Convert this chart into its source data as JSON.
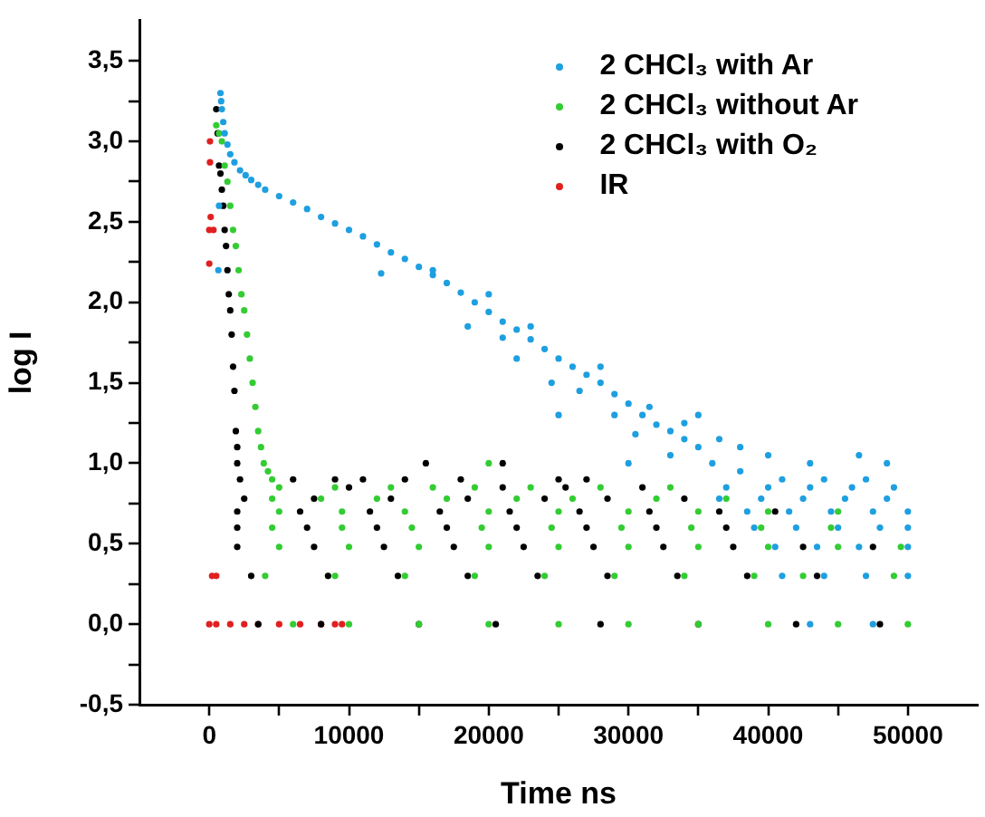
{
  "chart_data": {
    "type": "scatter",
    "xlabel": "Time ns",
    "ylabel": "log I",
    "legend": "top right",
    "grid": false,
    "marker": "circle",
    "xlim": [
      -5000,
      55000
    ],
    "xticks": [
      0,
      {
        "value": 5000,
        "label": null
      },
      10000,
      {
        "value": 15000,
        "label": null
      },
      20000,
      {
        "value": 25000,
        "label": null
      },
      30000,
      {
        "value": 35000,
        "label": null
      },
      40000,
      {
        "value": 45000,
        "label": null
      },
      50000
    ],
    "ylim": [
      -0.5,
      3.75
    ],
    "yticks": [
      {
        "value": -0.5,
        "label": "-0,5"
      },
      {
        "value": -0.25,
        "label": null
      },
      {
        "value": 0,
        "label": "0,0"
      },
      {
        "value": 0.25,
        "label": null
      },
      {
        "value": 0.5,
        "label": "0,5"
      },
      {
        "value": 0.75,
        "label": null
      },
      {
        "value": 1,
        "label": "1,0"
      },
      {
        "value": 1.25,
        "label": null
      },
      {
        "value": 1.5,
        "label": "1,5"
      },
      {
        "value": 1.75,
        "label": null
      },
      {
        "value": 2,
        "label": "2,0"
      },
      {
        "value": 2.25,
        "label": null
      },
      {
        "value": 2.5,
        "label": "2,5"
      },
      {
        "value": 2.75,
        "label": null
      },
      {
        "value": 3,
        "label": "3,0"
      },
      {
        "value": 3.25,
        "label": null
      },
      {
        "value": 3.5,
        "label": "3,5"
      }
    ],
    "series": [
      {
        "name": "2 CHCl₃ with Ar",
        "color": "#1e9fe0",
        "x": [
          800,
          850,
          900,
          1000,
          1100,
          1300,
          1500,
          1800,
          2200,
          2600,
          3000,
          3500,
          4000,
          5000,
          6000,
          7000,
          8000,
          9000,
          10000,
          11000,
          12000,
          13000,
          14000,
          15000,
          16000,
          17000,
          18000,
          19000,
          20000,
          21000,
          22000,
          23000,
          24000,
          25000,
          26000,
          27000,
          28000,
          29000,
          30000,
          31000,
          32000,
          33000,
          34000,
          35000,
          12300,
          16000,
          18500,
          20000,
          21000,
          22000,
          23000,
          24500,
          25000,
          26500,
          28000,
          29000,
          30000,
          30500,
          31500,
          33000,
          34000,
          35000,
          36500,
          38000,
          40000,
          43000,
          46500,
          48500,
          700,
          650,
          36000,
          38000,
          41000,
          44000,
          47000,
          37000,
          40000,
          43000,
          46000,
          49000,
          36500,
          39500,
          42500,
          45500,
          48500,
          38500,
          41500,
          44500,
          47500,
          50000,
          39000,
          42000,
          45000,
          48000,
          50000,
          40500,
          43500,
          46500,
          50000,
          41000,
          44000,
          47000,
          50000,
          43000,
          47500
        ],
        "values": [
          3.3,
          3.25,
          3.2,
          3.12,
          3.05,
          2.98,
          2.92,
          2.87,
          2.82,
          2.79,
          2.76,
          2.73,
          2.7,
          2.66,
          2.62,
          2.58,
          2.53,
          2.49,
          2.45,
          2.41,
          2.36,
          2.31,
          2.27,
          2.22,
          2.17,
          2.12,
          2.06,
          2.0,
          1.94,
          1.88,
          1.83,
          1.77,
          1.71,
          1.65,
          1.6,
          1.55,
          1.5,
          1.43,
          1.37,
          1.3,
          1.24,
          1.2,
          1.15,
          1.1,
          2.18,
          2.2,
          1.85,
          2.05,
          1.78,
          1.65,
          1.85,
          1.5,
          1.3,
          1.45,
          1.6,
          1.3,
          1.0,
          1.18,
          1.35,
          1.05,
          1.25,
          1.3,
          1.15,
          1.1,
          1.05,
          1.0,
          1.05,
          1.0,
          2.6,
          2.2,
          1.0,
          0.95,
          0.9,
          0.9,
          0.9,
          0.85,
          0.85,
          0.85,
          0.85,
          0.85,
          0.78,
          0.78,
          0.78,
          0.78,
          0.78,
          0.7,
          0.7,
          0.7,
          0.7,
          0.7,
          0.6,
          0.6,
          0.6,
          0.6,
          0.6,
          0.48,
          0.48,
          0.48,
          0.48,
          0.3,
          0.3,
          0.3,
          0.3,
          0,
          0
        ]
      },
      {
        "name": "2 CHCl₃ without Ar",
        "color": "#33cc33",
        "x": [
          500,
          700,
          900,
          1100,
          1300,
          1500,
          1700,
          1900,
          2100,
          2300,
          2500,
          2700,
          2900,
          3100,
          3300,
          3500,
          3700,
          3900,
          4200,
          4500,
          5000,
          9000,
          13000,
          16000,
          19000,
          23000,
          28000,
          33000,
          4500,
          8000,
          12000,
          17000,
          22000,
          26000,
          32000,
          37000,
          5000,
          9500,
          14000,
          20000,
          25000,
          30000,
          35000,
          40000,
          45000,
          4500,
          9500,
          14500,
          19500,
          24500,
          29500,
          34500,
          39500,
          44500,
          5000,
          10000,
          15000,
          20000,
          25000,
          30000,
          35000,
          40000,
          45000,
          49500,
          4000,
          9000,
          14000,
          19000,
          24000,
          29000,
          34000,
          39000,
          42500,
          49000,
          6000,
          10000,
          15000,
          20000,
          25000,
          30000,
          35000,
          40000,
          45000,
          50000,
          20000
        ],
        "values": [
          3.1,
          3.05,
          3.0,
          2.85,
          2.75,
          2.6,
          2.45,
          2.35,
          2.2,
          2.05,
          1.95,
          1.8,
          1.65,
          1.5,
          1.35,
          1.2,
          1.1,
          1.0,
          0.95,
          0.9,
          0.85,
          0.85,
          0.85,
          0.85,
          0.85,
          0.85,
          0.85,
          0.85,
          0.78,
          0.78,
          0.78,
          0.78,
          0.78,
          0.78,
          0.78,
          0.78,
          0.7,
          0.7,
          0.7,
          0.7,
          0.7,
          0.7,
          0.7,
          0.7,
          0.7,
          0.6,
          0.6,
          0.6,
          0.6,
          0.6,
          0.6,
          0.6,
          0.6,
          0.6,
          0.48,
          0.48,
          0.48,
          0.48,
          0.48,
          0.48,
          0.48,
          0.48,
          0.48,
          0.48,
          0.3,
          0.3,
          0.3,
          0.3,
          0.3,
          0.3,
          0.3,
          0.3,
          0.3,
          0.3,
          0,
          0,
          0,
          0,
          0,
          0,
          0,
          0,
          0,
          0,
          1.0
        ]
      },
      {
        "name": "2 CHCl₃ with O₂",
        "color": "#000000",
        "x": [
          500,
          600,
          700,
          800,
          900,
          1000,
          1100,
          1200,
          1300,
          1400,
          1500,
          1600,
          1700,
          1800,
          1900,
          2000,
          2000,
          2200,
          6000,
          9000,
          11000,
          14000,
          18000,
          25000,
          27000,
          15500,
          21000,
          10000,
          21000,
          25500,
          31000,
          2500,
          7500,
          13000,
          18500,
          24000,
          28500,
          34000,
          2000,
          6500,
          11500,
          16500,
          21500,
          26500,
          31500,
          36500,
          40500,
          2000,
          7000,
          12000,
          17000,
          22000,
          27000,
          32000,
          37000,
          2000,
          7500,
          12500,
          17500,
          22500,
          27500,
          32500,
          37500,
          42500,
          47500,
          3000,
          8500,
          13500,
          18500,
          23500,
          28500,
          33500,
          38500,
          43500,
          3500,
          8000,
          15000,
          20500,
          28000,
          35000,
          42000,
          48000
        ],
        "values": [
          3.2,
          3.05,
          2.85,
          2.8,
          2.7,
          2.6,
          2.45,
          2.35,
          2.2,
          2.05,
          1.95,
          1.8,
          1.6,
          1.45,
          1.2,
          1.1,
          1.0,
          0.9,
          0.9,
          0.9,
          0.9,
          0.9,
          0.9,
          0.9,
          0.9,
          1.0,
          1.0,
          0.85,
          0.85,
          0.85,
          0.85,
          0.78,
          0.78,
          0.78,
          0.78,
          0.78,
          0.78,
          0.78,
          0.7,
          0.7,
          0.7,
          0.7,
          0.7,
          0.7,
          0.7,
          0.7,
          0.7,
          0.6,
          0.6,
          0.6,
          0.6,
          0.6,
          0.6,
          0.6,
          0.6,
          0.48,
          0.48,
          0.48,
          0.48,
          0.48,
          0.48,
          0.48,
          0.48,
          0.48,
          0.48,
          0.3,
          0.3,
          0.3,
          0.3,
          0.3,
          0.3,
          0.3,
          0.3,
          0.3,
          0,
          0,
          0,
          0,
          0,
          0,
          0,
          0
        ]
      },
      {
        "name": "IR",
        "color": "#e02020",
        "x": [
          50,
          50,
          100,
          0,
          300,
          0,
          200,
          500,
          0,
          500,
          1500,
          2500,
          3500,
          5000,
          6500,
          8000,
          9000,
          9500
        ],
        "values": [
          3.0,
          2.87,
          2.53,
          2.45,
          2.45,
          2.24,
          0.3,
          0.3,
          0,
          0,
          0,
          0,
          0,
          0,
          0,
          0,
          0,
          0
        ]
      }
    ]
  }
}
